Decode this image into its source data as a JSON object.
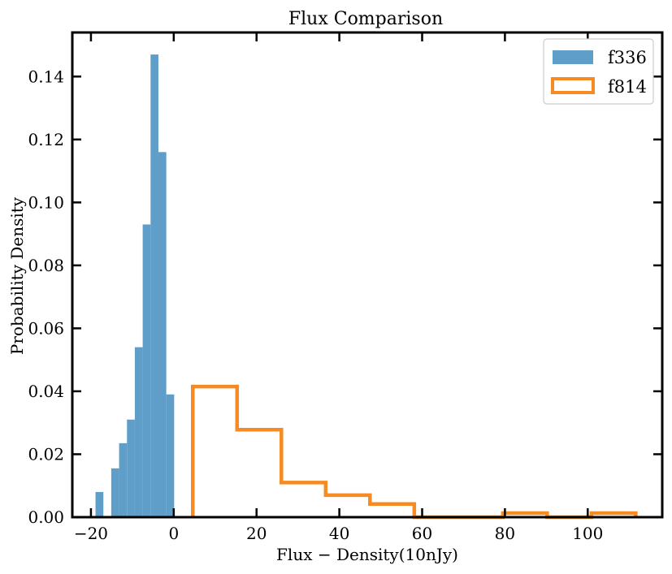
{
  "chart_data": {
    "type": "bar",
    "title": "Flux   Comparison",
    "xlabel": "Flux − Density(10nJy)",
    "ylabel": "Probability Density",
    "xlim": [
      -24.5,
      118
    ],
    "ylim": [
      0,
      0.154
    ],
    "xticks": [
      -20,
      0,
      20,
      40,
      60,
      80,
      100
    ],
    "xtick_labels": [
      "−20",
      "0",
      "20",
      "40",
      "60",
      "80",
      "100"
    ],
    "yticks": [
      0.0,
      0.02,
      0.04,
      0.06,
      0.08,
      0.1,
      0.12,
      0.14
    ],
    "ytick_labels": [
      "0.00",
      "0.02",
      "0.04",
      "0.06",
      "0.08",
      "0.10",
      "0.12",
      "0.14"
    ],
    "legend": {
      "placement": "top-right"
    },
    "series": [
      {
        "name": "f336",
        "style": "filled",
        "color": "#5f9ec9",
        "bin_edges": [
          -18.9,
          -17.0,
          -15.1,
          -13.2,
          -11.3,
          -9.4,
          -7.5,
          -5.6,
          -3.7,
          -1.8,
          0.1
        ],
        "values": [
          0.008,
          0.0,
          0.0155,
          0.0235,
          0.031,
          0.054,
          0.093,
          0.147,
          0.116,
          0.039
        ]
      },
      {
        "name": "f814",
        "style": "step",
        "color": "#f58b22",
        "bin_edges": [
          4.6,
          15.3,
          26.0,
          36.7,
          47.4,
          58.1,
          68.8,
          79.5,
          90.2,
          100.9,
          111.6
        ],
        "values": [
          0.0415,
          0.0278,
          0.011,
          0.007,
          0.0042,
          0.0,
          0.0,
          0.0013,
          0.0,
          0.0013
        ]
      }
    ]
  }
}
